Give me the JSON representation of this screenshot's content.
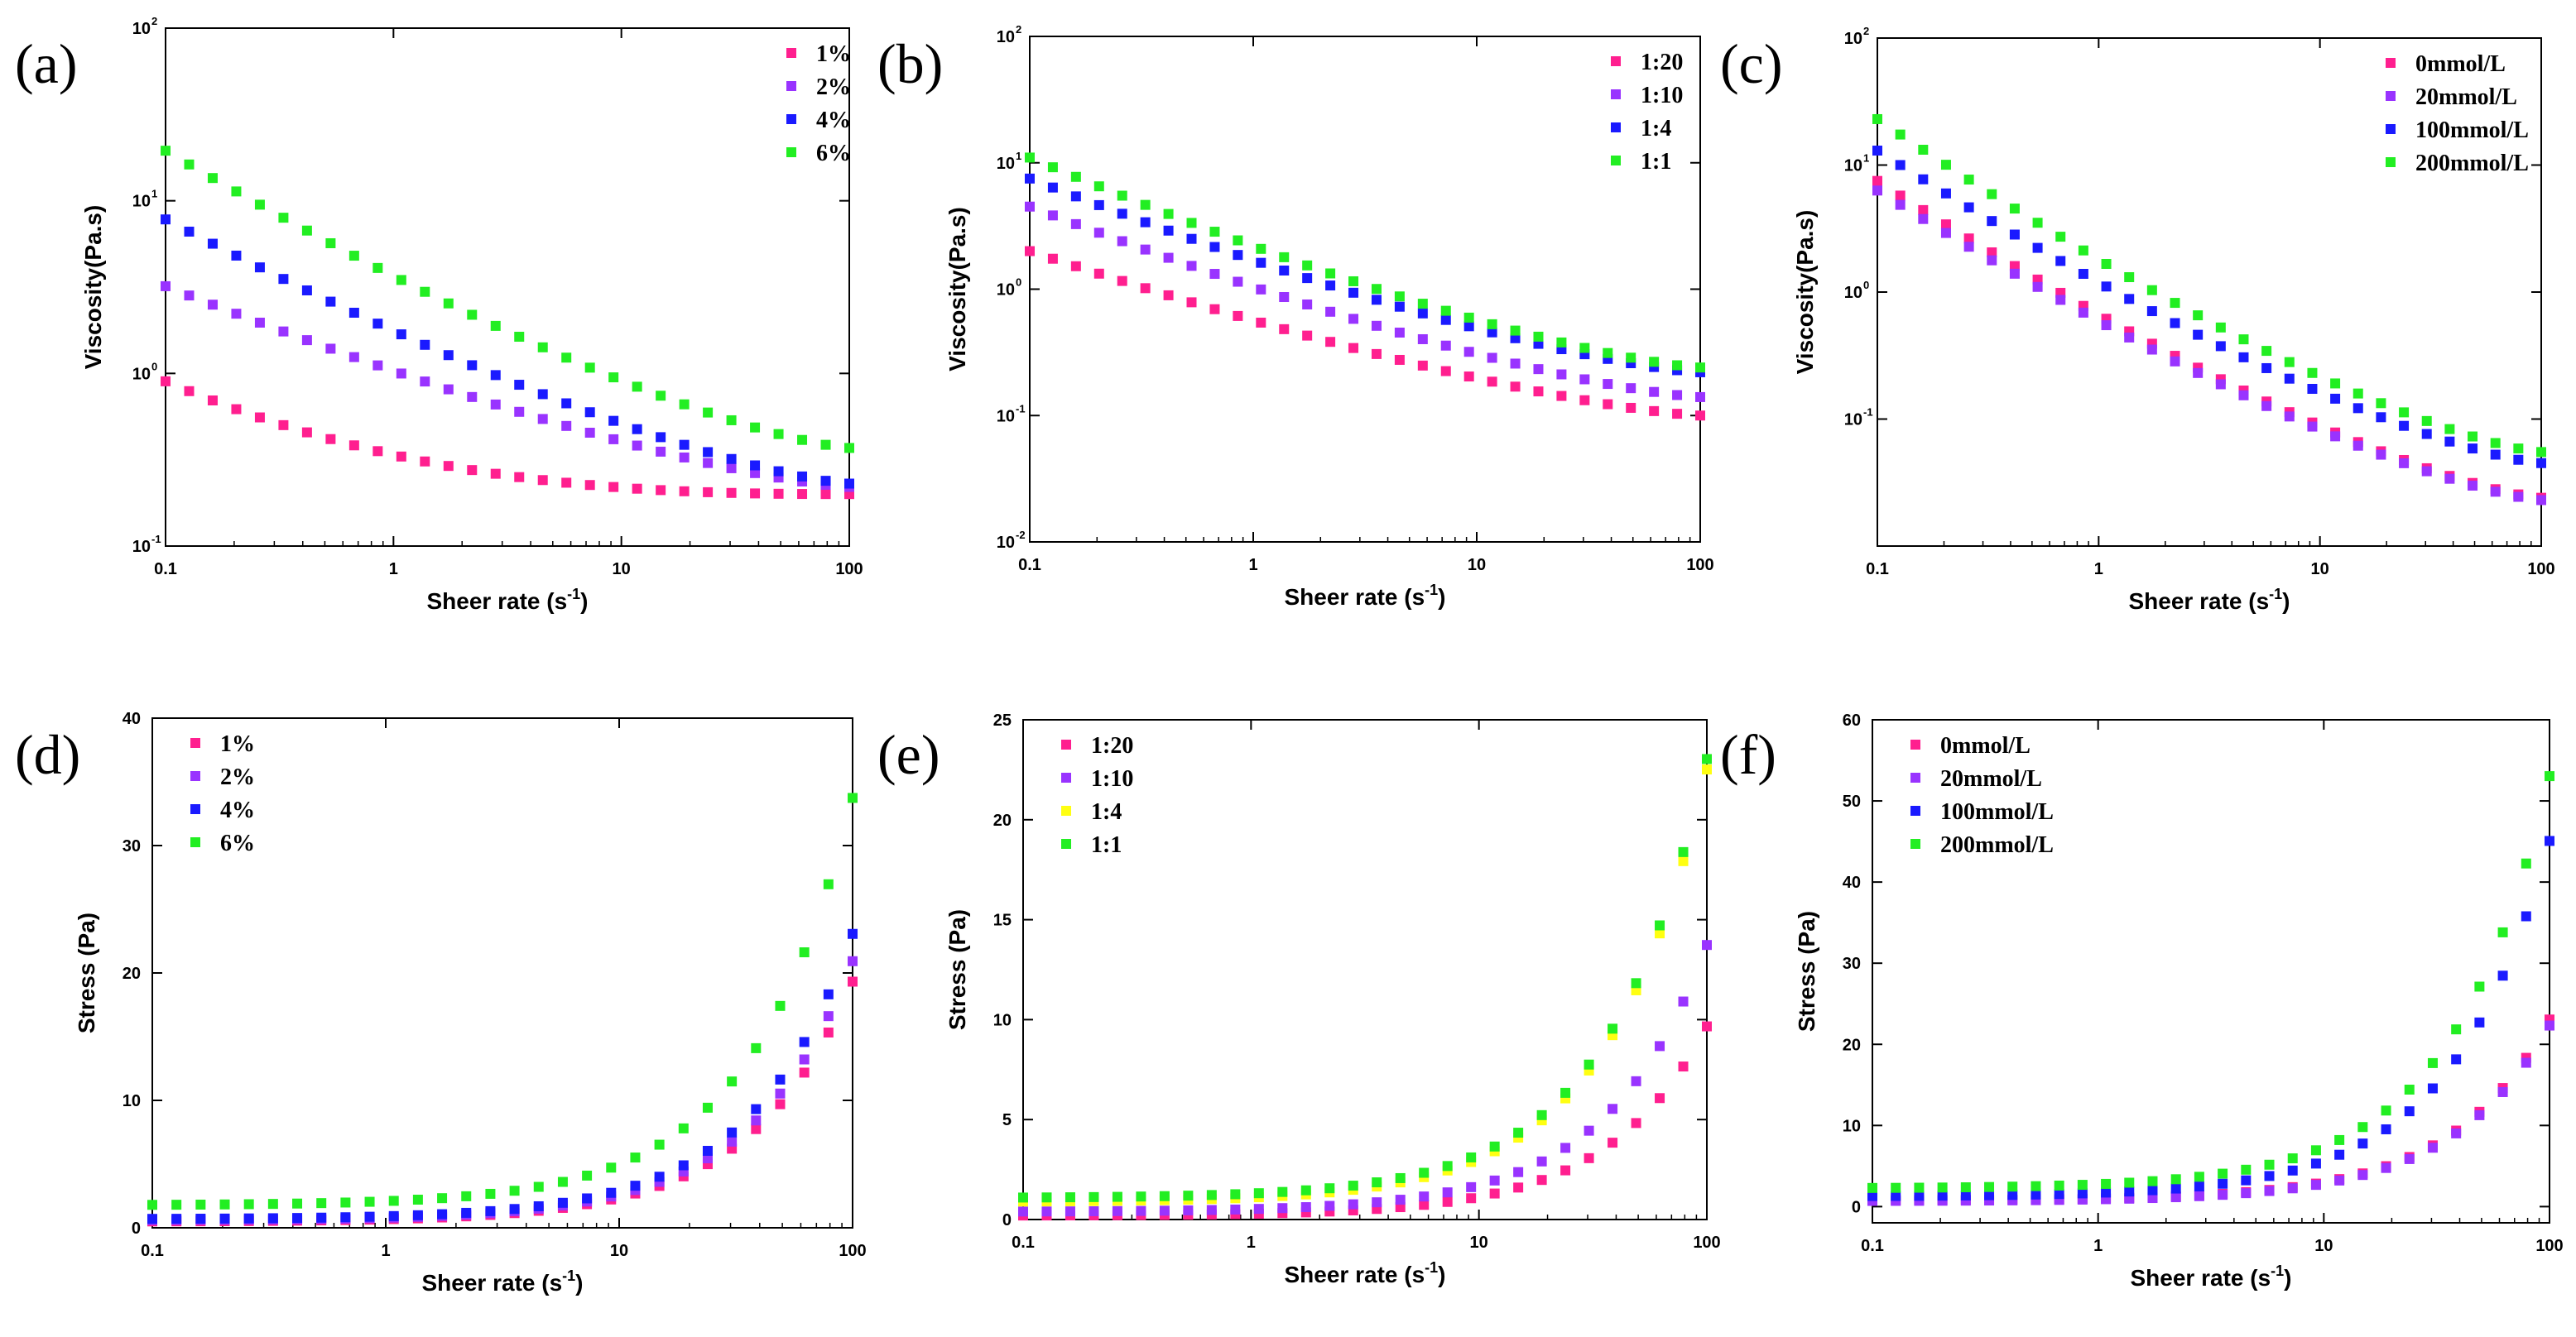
{
  "figure": {
    "background": "#ffffff"
  },
  "series_colors": {
    "pink": "#ff1f8f",
    "purple": "#9933ff",
    "blue": "#1a1aff",
    "green": "#22ee22",
    "yellow": "#ffff11"
  },
  "chart_data": [
    {
      "id": "a",
      "panel_label": "(a)",
      "type": "scatter",
      "xscale": "log",
      "yscale": "log",
      "xlim": [
        0.1,
        100
      ],
      "ylim": [
        0.1,
        100
      ],
      "xticks": [
        "0.1",
        "1",
        "10",
        "100"
      ],
      "yticks": [
        {
          "b": "10",
          "e": "-1"
        },
        {
          "b": "10",
          "e": "0"
        },
        {
          "b": "10",
          "e": "1"
        },
        {
          "b": "10",
          "e": "2"
        }
      ],
      "xlabel": "Sheer rate (s",
      "xlabel_sup": "-1",
      "xlabel_end": ")",
      "ylabel": "Viscosity(Pa.s)",
      "legend_position": "top-right",
      "series": [
        {
          "name": "1%",
          "color": "pink",
          "from": 0.9,
          "to": 0.2,
          "n": 30
        },
        {
          "name": "2%",
          "color": "purple",
          "from": 3.2,
          "to": 0.22,
          "n": 30
        },
        {
          "name": "4%",
          "color": "blue",
          "from": 7.8,
          "to": 0.23,
          "n": 30
        },
        {
          "name": "6%",
          "color": "green",
          "from": 19.5,
          "to": 0.37,
          "n": 30
        }
      ]
    },
    {
      "id": "b",
      "panel_label": "(b)",
      "type": "scatter",
      "xscale": "log",
      "yscale": "log",
      "xlim": [
        0.1,
        100
      ],
      "ylim": [
        0.01,
        100
      ],
      "xticks": [
        "0.1",
        "1",
        "10",
        "100"
      ],
      "yticks": [
        {
          "b": "10",
          "e": "-2"
        },
        {
          "b": "10",
          "e": "-1"
        },
        {
          "b": "10",
          "e": "0"
        },
        {
          "b": "10",
          "e": "1"
        },
        {
          "b": "10",
          "e": "2"
        }
      ],
      "xlabel": "Sheer rate (s",
      "xlabel_sup": "-1",
      "xlabel_end": ")",
      "ylabel": "Viscosity(Pa.s)",
      "legend_position": "top-right",
      "series": [
        {
          "name": "1:20",
          "color": "pink",
          "from": 2.0,
          "to": 0.1,
          "n": 30
        },
        {
          "name": "1:10",
          "color": "purple",
          "from": 4.5,
          "to": 0.14,
          "n": 30
        },
        {
          "name": "1:4",
          "color": "blue",
          "from": 7.5,
          "to": 0.22,
          "n": 30
        },
        {
          "name": "1:1",
          "color": "green",
          "from": 11.0,
          "to": 0.24,
          "n": 30
        }
      ]
    },
    {
      "id": "c",
      "panel_label": "(c)",
      "type": "scatter",
      "xscale": "log",
      "yscale": "log",
      "xlim": [
        0.1,
        100
      ],
      "ylim": [
        0.01,
        100
      ],
      "xticks": [
        "0.1",
        "1",
        "10",
        "100"
      ],
      "yticks": [
        {
          "b": "10",
          "e": "-1"
        },
        {
          "b": "10",
          "e": "0"
        },
        {
          "b": "10",
          "e": "1"
        },
        {
          "b": "10",
          "e": "2"
        }
      ],
      "xlabel": "Sheer rate (s",
      "xlabel_sup": "-1",
      "xlabel_end": ")",
      "ylabel": "Viscosity(Pa.s)",
      "legend_position": "top-right",
      "series": [
        {
          "name": "0mmol/L",
          "color": "pink",
          "from": 7.5,
          "to": 0.024,
          "n": 30
        },
        {
          "name": "20mmol/L",
          "color": "purple",
          "from": 6.3,
          "to": 0.023,
          "n": 30
        },
        {
          "name": "100mmol/L",
          "color": "blue",
          "from": 13.0,
          "to": 0.045,
          "n": 30
        },
        {
          "name": "200mmol/L",
          "color": "green",
          "from": 23.0,
          "to": 0.055,
          "n": 30
        }
      ]
    },
    {
      "id": "d",
      "panel_label": "(d)",
      "type": "scatter",
      "xscale": "log",
      "yscale": "linear",
      "xlim": [
        0.1,
        100
      ],
      "ylim": [
        0,
        40
      ],
      "xticks": [
        "0.1",
        "1",
        "10",
        "100"
      ],
      "yticks": [
        "0",
        "10",
        "20",
        "30",
        "40"
      ],
      "xlabel": "Sheer rate (s",
      "xlabel_sup": "-1",
      "xlabel_end": ")",
      "ylabel": "Stress (Pa)",
      "legend_position": "top-left",
      "series": [
        {
          "name": "1%",
          "color": "pink",
          "a": 0.5,
          "b": 18.0,
          "n": 30
        },
        {
          "name": "2%",
          "color": "purple",
          "a": 0.6,
          "b": 19.5,
          "n": 30
        },
        {
          "name": "4%",
          "color": "blue",
          "a": 0.7,
          "b": 21.5,
          "n": 30
        },
        {
          "name": "6%",
          "color": "green",
          "a": 1.8,
          "b": 31.5,
          "n": 30
        }
      ]
    },
    {
      "id": "e",
      "panel_label": "(e)",
      "type": "scatter",
      "xscale": "log",
      "yscale": "linear",
      "xlim": [
        0.1,
        100
      ],
      "ylim": [
        0,
        25
      ],
      "xticks": [
        "0.1",
        "1",
        "10",
        "100"
      ],
      "yticks": [
        "0",
        "5",
        "10",
        "15",
        "20",
        "25"
      ],
      "xlabel": "Sheer rate (s",
      "xlabel_sup": "-1",
      "xlabel_end": ")",
      "ylabel": "Stress (Pa)",
      "legend_position": "top-left",
      "series": [
        {
          "name": "1:20",
          "color": "pink",
          "a": 0.2,
          "b": 9.0,
          "n": 30
        },
        {
          "name": "1:10",
          "color": "purple",
          "a": 0.4,
          "b": 12.8,
          "n": 30
        },
        {
          "name": "1:4",
          "color": "yellow",
          "a": 0.9,
          "b": 21.0,
          "n": 30
        },
        {
          "name": "1:1",
          "color": "green",
          "a": 1.1,
          "b": 21.5,
          "n": 30
        }
      ]
    },
    {
      "id": "f",
      "panel_label": "(f)",
      "type": "scatter",
      "xscale": "log",
      "yscale": "linear",
      "xlim": [
        0.1,
        100
      ],
      "ylim": [
        -2,
        60
      ],
      "xticks": [
        "0.1",
        "1",
        "10",
        "100"
      ],
      "yticks": [
        "0",
        "10",
        "20",
        "30",
        "40",
        "50",
        "60"
      ],
      "xlabel": "Sheer rate (s",
      "xlabel_sup": "-1",
      "xlabel_end": ")",
      "ylabel": "Stress (Pa)",
      "legend_position": "top-left",
      "series": [
        {
          "name": "0mmol/L",
          "color": "pink",
          "a": 0.8,
          "b": 21.5,
          "n": 30
        },
        {
          "name": "20mmol/L",
          "color": "purple",
          "a": 0.7,
          "b": 20.8,
          "n": 30
        },
        {
          "name": "100mmol/L",
          "color": "blue",
          "a": 1.3,
          "b": 42.0,
          "n": 30
        },
        {
          "name": "200mmol/L",
          "color": "green",
          "a": 2.3,
          "b": 49.5,
          "n": 30
        }
      ]
    }
  ]
}
